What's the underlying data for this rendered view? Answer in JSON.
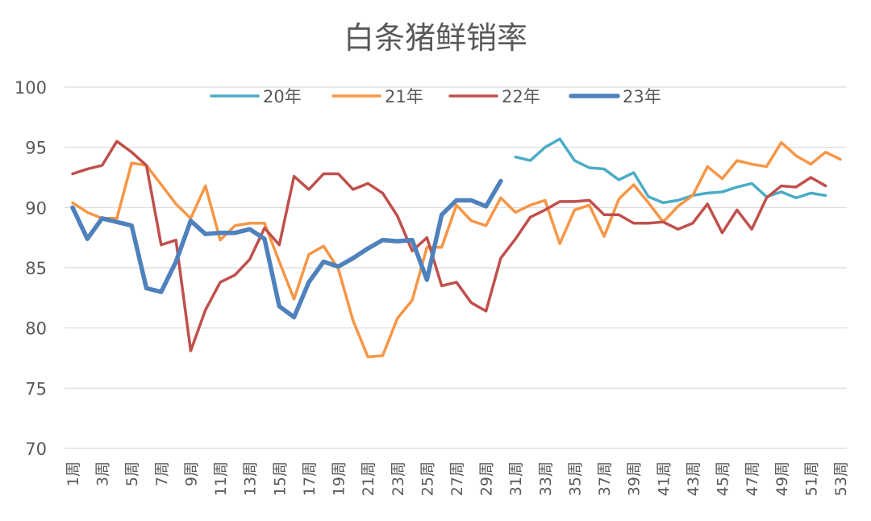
{
  "chart_data": {
    "type": "line",
    "title": "白条猪鲜销率",
    "xlabel": "",
    "ylabel": "",
    "ylim": [
      70,
      100
    ],
    "yticks": [
      70,
      75,
      80,
      85,
      90,
      95,
      100
    ],
    "grid": true,
    "legend_position": "top",
    "categories": [
      "1周",
      "2周",
      "3周",
      "4周",
      "5周",
      "6周",
      "7周",
      "8周",
      "9周",
      "10周",
      "11周",
      "12周",
      "13周",
      "14周",
      "15周",
      "16周",
      "17周",
      "18周",
      "19周",
      "20周",
      "21周",
      "22周",
      "23周",
      "24周",
      "25周",
      "26周",
      "27周",
      "28周",
      "29周",
      "30周",
      "31周",
      "32周",
      "33周",
      "34周",
      "35周",
      "36周",
      "37周",
      "38周",
      "39周",
      "40周",
      "41周",
      "42周",
      "43周",
      "44周",
      "45周",
      "46周",
      "47周",
      "48周",
      "49周",
      "50周",
      "51周",
      "52周",
      "53周"
    ],
    "tick_labels": [
      "1周",
      "3周",
      "5周",
      "7周",
      "9周",
      "11周",
      "13周",
      "15周",
      "17周",
      "19周",
      "21周",
      "23周",
      "25周",
      "27周",
      "29周",
      "31周",
      "33周",
      "35周",
      "37周",
      "39周",
      "41周",
      "43周",
      "45周",
      "47周",
      "49周",
      "51周",
      "53周"
    ],
    "series": [
      {
        "name": "20年",
        "color": "#4bacc6",
        "width": 3.5,
        "values": [
          null,
          null,
          null,
          null,
          null,
          null,
          null,
          null,
          null,
          null,
          null,
          null,
          null,
          null,
          null,
          null,
          null,
          null,
          null,
          null,
          null,
          null,
          null,
          null,
          null,
          null,
          null,
          null,
          null,
          null,
          94.2,
          93.9,
          95.0,
          95.7,
          93.9,
          93.3,
          93.2,
          92.3,
          92.9,
          90.9,
          90.4,
          90.6,
          91.0,
          91.2,
          91.3,
          91.7,
          92.0,
          90.9,
          91.3,
          90.8,
          91.2,
          91.0,
          null
        ]
      },
      {
        "name": "21年",
        "color": "#f79646",
        "width": 3.5,
        "values": [
          90.4,
          89.6,
          89.1,
          89.1,
          93.7,
          93.5,
          91.9,
          90.3,
          89.1,
          91.8,
          87.3,
          88.5,
          88.7,
          88.7,
          85.5,
          82.4,
          86.1,
          86.8,
          84.9,
          80.6,
          77.6,
          77.7,
          80.8,
          82.3,
          86.7,
          86.7,
          90.2,
          88.9,
          88.5,
          90.8,
          89.6,
          90.2,
          90.6,
          87.0,
          89.8,
          90.2,
          87.6,
          90.7,
          91.9,
          90.4,
          88.8,
          90.1,
          91.0,
          93.4,
          92.4,
          93.9,
          93.6,
          93.4,
          95.4,
          94.3,
          93.6,
          94.6,
          94.0
        ]
      },
      {
        "name": "22年",
        "color": "#c0504d",
        "width": 3.5,
        "values": [
          92.8,
          93.2,
          93.5,
          95.5,
          94.6,
          93.5,
          86.9,
          87.3,
          78.1,
          81.5,
          83.8,
          84.4,
          85.7,
          88.3,
          86.9,
          92.6,
          91.5,
          92.8,
          92.8,
          91.5,
          92.0,
          91.2,
          89.3,
          86.4,
          87.5,
          83.5,
          83.8,
          82.1,
          81.4,
          85.8,
          87.4,
          89.2,
          89.8,
          90.5,
          90.5,
          90.6,
          89.4,
          89.4,
          88.7,
          88.7,
          88.8,
          88.2,
          88.7,
          90.3,
          87.9,
          89.8,
          88.2,
          90.8,
          91.8,
          91.7,
          92.5,
          91.8,
          null
        ]
      },
      {
        "name": "23年",
        "color": "#4f81bd",
        "width": 5.5,
        "values": [
          90.0,
          87.4,
          89.1,
          88.8,
          88.5,
          83.3,
          83.0,
          85.5,
          88.9,
          87.8,
          87.9,
          87.9,
          88.2,
          87.4,
          81.8,
          80.9,
          83.8,
          85.5,
          85.1,
          85.8,
          86.6,
          87.3,
          87.2,
          87.3,
          84.0,
          89.4,
          90.6,
          90.6,
          90.1,
          92.2,
          null,
          null,
          null,
          null,
          null,
          null,
          null,
          null,
          null,
          null,
          null,
          null,
          null,
          null,
          null,
          null,
          null,
          null,
          null,
          null,
          null,
          null,
          null
        ]
      }
    ]
  }
}
